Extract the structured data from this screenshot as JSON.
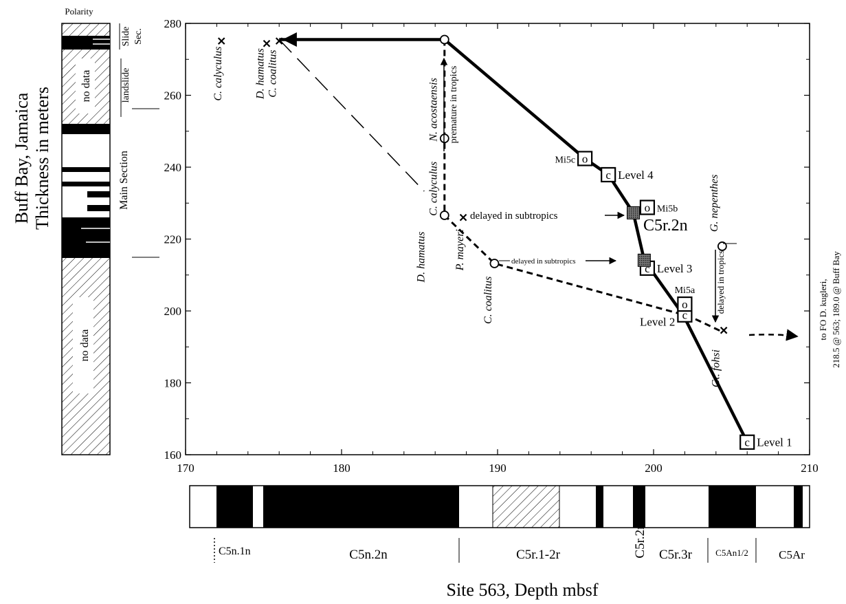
{
  "chart_data": {
    "type": "scatter",
    "xlabel": "Site 563, Depth mbsf",
    "ylabel_line1": "Buff Bay, Jamaica",
    "ylabel_line2": "Thickness in meters",
    "xlim": [
      170,
      210
    ],
    "ylim": [
      160,
      280
    ],
    "xticks": [
      170,
      180,
      190,
      200,
      210
    ],
    "yticks": [
      160,
      180,
      200,
      220,
      240,
      260,
      280
    ],
    "xtick_labels": [
      "170",
      "180",
      "190",
      "200",
      "210"
    ],
    "ytick_labels": [
      "160",
      "180",
      "200",
      "220",
      "240",
      "260",
      "280"
    ],
    "series": [
      {
        "name": "",
        "style": "solid",
        "points": [
          [
            176.0,
            275.5
          ],
          [
            186.6,
            275.5
          ],
          [
            195.6,
            242.4
          ],
          [
            197.1,
            237.9
          ],
          [
            198.7,
            227.3
          ],
          [
            199.4,
            214.1
          ],
          [
            201.9,
            198.9
          ],
          [
            206.0,
            163.5
          ]
        ]
      },
      {
        "name": "",
        "style": "dashed-heavy",
        "points": [
          [
            186.6,
            275.5
          ],
          [
            186.6,
            248.0
          ],
          [
            186.6,
            226.6
          ],
          [
            189.8,
            213.2
          ],
          [
            202.3,
            198.5
          ],
          [
            204.4,
            194.2
          ]
        ]
      },
      {
        "name": "",
        "style": "long-dash",
        "points": [
          [
            176.0,
            275.5
          ],
          [
            185.3,
            233.3
          ]
        ]
      }
    ],
    "markers_square": [
      {
        "x": 206.0,
        "y": 163.5,
        "glyph": "c",
        "label": "Level 1"
      },
      {
        "x": 202.0,
        "y": 198.9,
        "glyph": "c",
        "label": "Level 2"
      },
      {
        "x": 199.6,
        "y": 211.9,
        "glyph": "c",
        "label": "Level 3"
      },
      {
        "x": 197.1,
        "y": 237.9,
        "glyph": "c",
        "label": "Level 4"
      },
      {
        "x": 195.6,
        "y": 242.4,
        "glyph": "o",
        "label": "Mi5c"
      },
      {
        "x": 199.6,
        "y": 228.8,
        "glyph": "o",
        "label": "Mi5b"
      },
      {
        "x": 202.0,
        "y": 201.9,
        "glyph": "o",
        "label": "Mi5a"
      }
    ],
    "markers_shaded": [
      {
        "x": 198.7,
        "y": 227.3
      },
      {
        "x": 199.4,
        "y": 214.1
      }
    ],
    "markers_circle": [
      {
        "x": 186.6,
        "y": 275.5
      },
      {
        "x": 186.6,
        "y": 248.0
      },
      {
        "x": 186.6,
        "y": 226.6
      },
      {
        "x": 189.8,
        "y": 213.2
      },
      {
        "x": 204.4,
        "y": 218.0
      }
    ],
    "markers_x": [
      {
        "x": 172.3,
        "y": 275.1
      },
      {
        "x": 175.2,
        "y": 274.4
      },
      {
        "x": 176.0,
        "y": 275.1
      },
      {
        "x": 187.8,
        "y": 226.0
      },
      {
        "x": 204.5,
        "y": 194.6
      }
    ],
    "species_labels": [
      {
        "text": "C. calyculus",
        "x": 172.3,
        "y": 266.0
      },
      {
        "text": "D. hamatus",
        "x": 175.0,
        "y": 266.0
      },
      {
        "text": "C. coalitus",
        "x": 175.8,
        "y": 266.0
      },
      {
        "text": "N. acostaensis",
        "x": 186.1,
        "y": 256.0
      },
      {
        "text": "C. calyculus",
        "x": 186.1,
        "y": 234.0
      },
      {
        "text": "D. hamatus",
        "x": 185.3,
        "y": 215.0
      },
      {
        "text": "P. mayeri",
        "x": 187.8,
        "y": 217.0
      },
      {
        "text": "C. coalitus",
        "x": 189.6,
        "y": 203.0
      },
      {
        "text": "G. nepenthes",
        "x": 204.1,
        "y": 230.0
      },
      {
        "text": "Gt. fohsi",
        "x": 204.2,
        "y": 184.0
      }
    ],
    "annotations": [
      "premature in tropics",
      "delayed in subtropics",
      "delayed in subtropics",
      "delayed in tropics",
      "C5r.2n"
    ],
    "right_note_line1": "to FO D. kugleri,",
    "right_note_line2": "218.5 @ 563; 189.0 @ Buff Bay",
    "polarity_title": "Polarity",
    "section_labels": {
      "slide_sec_1": "Slide",
      "slide_sec_2": "Sec.",
      "landslide": "landslide",
      "main": "Main Section"
    },
    "no_data_label": "no data",
    "chrons": [
      "C5n.1n",
      "C5n.2n",
      "C5r.1-2r",
      "C5r.2n",
      "C5r.3r",
      "C5An1/2",
      "C5Ar"
    ]
  }
}
